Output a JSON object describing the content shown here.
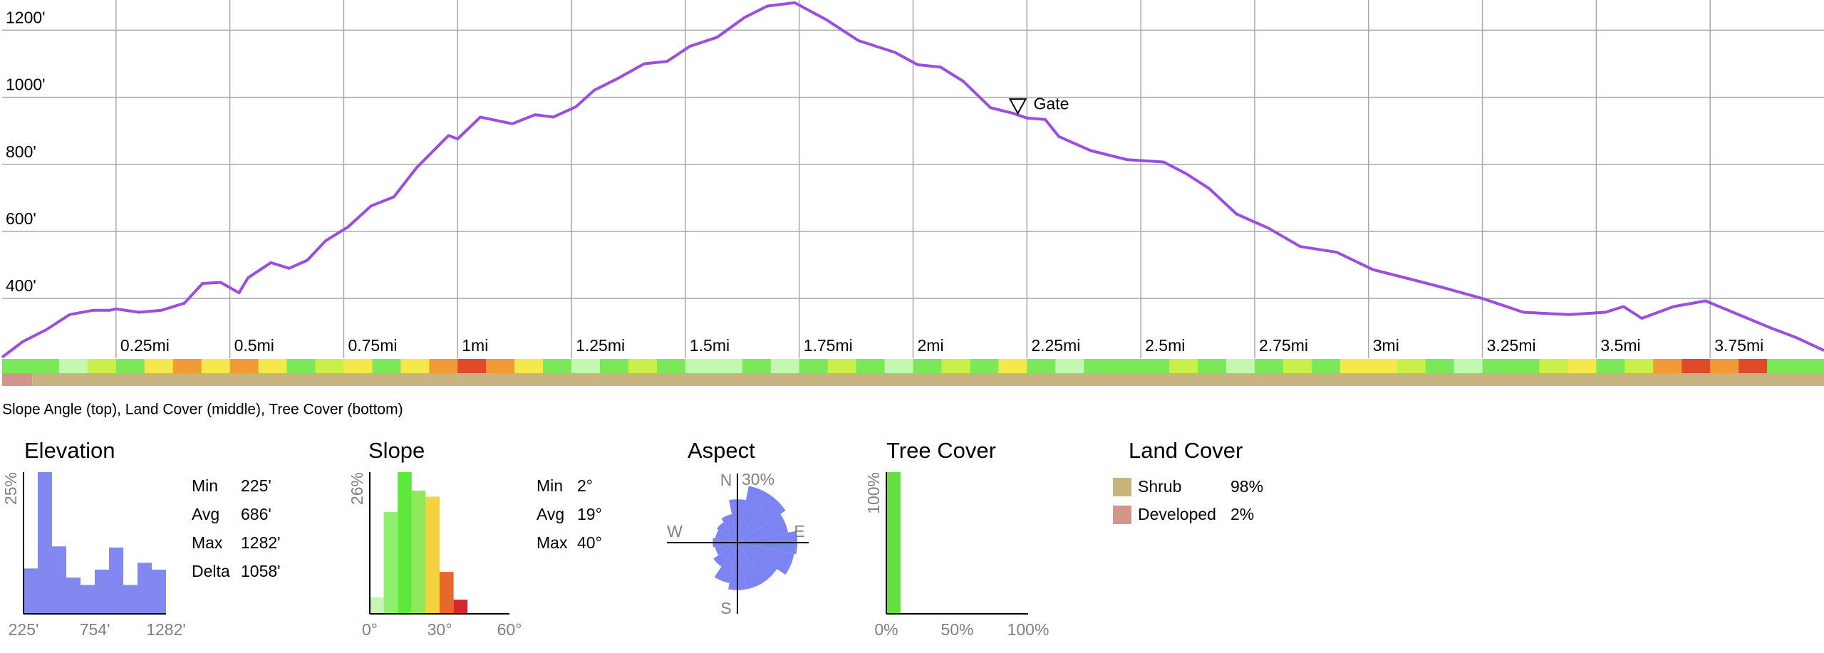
{
  "chart_data": [
    {
      "type": "line",
      "color": "#9b4ee0",
      "x": [
        0,
        0.046,
        0.097,
        0.148,
        0.2,
        0.237,
        0.25,
        0.3,
        0.35,
        0.4,
        0.44,
        0.48,
        0.52,
        0.54,
        0.59,
        0.63,
        0.67,
        0.71,
        0.76,
        0.81,
        0.86,
        0.91,
        0.98,
        1.0,
        1.05,
        1.12,
        1.17,
        1.21,
        1.26,
        1.3,
        1.35,
        1.41,
        1.46,
        1.51,
        1.57,
        1.63,
        1.68,
        1.74,
        1.81,
        1.88,
        1.96,
        2.01,
        2.06,
        2.11,
        2.17,
        2.22,
        2.25,
        2.29,
        2.32,
        2.39,
        2.47,
        2.55,
        2.6,
        2.65,
        2.71,
        2.78,
        2.85,
        2.93,
        3.01,
        3.08,
        3.16,
        3.25,
        3.34,
        3.44,
        3.52,
        3.56,
        3.6,
        3.67,
        3.74,
        3.8,
        3.88,
        3.94,
        4.0
      ],
      "values": [
        225,
        272,
        307,
        352,
        365,
        365,
        369,
        359,
        365,
        386,
        445,
        448,
        417,
        462,
        507,
        490,
        514,
        572,
        614,
        676,
        703,
        790,
        886,
        876,
        941,
        921,
        948,
        941,
        972,
        1021,
        1055,
        1100,
        1107,
        1152,
        1179,
        1238,
        1272,
        1282,
        1231,
        1169,
        1134,
        1097,
        1090,
        1048,
        969,
        952,
        938,
        934,
        883,
        841,
        814,
        807,
        772,
        728,
        652,
        610,
        555,
        538,
        486,
        462,
        434,
        400,
        359,
        352,
        359,
        376,
        341,
        376,
        393,
        359,
        314,
        283,
        245
      ],
      "xlim": [
        0,
        4.0
      ],
      "ylim": [
        222,
        1290
      ],
      "xticks": [
        {
          "value": 0.25,
          "label": "0.25mi"
        },
        {
          "value": 0.5,
          "label": "0.5mi"
        },
        {
          "value": 0.75,
          "label": "0.75mi"
        },
        {
          "value": 1,
          "label": "1mi"
        },
        {
          "value": 1.25,
          "label": "1.25mi"
        },
        {
          "value": 1.5,
          "label": "1.5mi"
        },
        {
          "value": 1.75,
          "label": "1.75mi"
        },
        {
          "value": 2,
          "label": "2mi"
        },
        {
          "value": 2.25,
          "label": "2.25mi"
        },
        {
          "value": 2.5,
          "label": "2.5mi"
        },
        {
          "value": 2.75,
          "label": "2.75mi"
        },
        {
          "value": 3,
          "label": "3mi"
        },
        {
          "value": 3.25,
          "label": "3.25mi"
        },
        {
          "value": 3.5,
          "label": "3.5mi"
        },
        {
          "value": 3.75,
          "label": "3.75mi"
        }
      ],
      "yticks": [
        {
          "value": 400,
          "label": "400'"
        },
        {
          "value": 600,
          "label": "600'"
        },
        {
          "value": 800,
          "label": "800'"
        },
        {
          "value": 1000,
          "label": "1000'"
        },
        {
          "value": 1200,
          "label": "1200'"
        }
      ],
      "grid": true,
      "annotation": {
        "text": "Gate",
        "x": 2.23,
        "y": 969
      },
      "strips": {
        "caption": "Slope Angle (top), Land Cover (middle), Tree Cover (bottom)",
        "slope_colors": [
          "#7be85a",
          "#7be85a",
          "#c4f7b0",
          "#c8f048",
          "#7be85a",
          "#f5e84a",
          "#f09a38",
          "#f5e84a",
          "#f09a38",
          "#f5e84a",
          "#7be85a",
          "#c8f048",
          "#f5e84a",
          "#7be85a",
          "#f5e84a",
          "#f09a38",
          "#e04a28",
          "#f09a38",
          "#f5e84a",
          "#7be85a",
          "#c4f7b0",
          "#7be85a",
          "#c8f048",
          "#7be85a",
          "#c4f7b0",
          "#c4f7b0",
          "#7be85a",
          "#c4f7b0",
          "#7be85a",
          "#c8f048",
          "#7be85a",
          "#c4f7b0",
          "#7be85a",
          "#c8f048",
          "#7be85a",
          "#f5e84a",
          "#7be85a",
          "#c4f7b0",
          "#7be85a",
          "#7be85a",
          "#7be85a",
          "#c8f048",
          "#7be85a",
          "#c4f7b0",
          "#7be85a",
          "#c8f048",
          "#7be85a",
          "#f5e84a",
          "#f5e84a",
          "#c8f048",
          "#7be85a",
          "#c4f7b0",
          "#7be85a",
          "#7be85a",
          "#c8f048",
          "#f5e84a",
          "#7be85a",
          "#c8f048",
          "#f09a38",
          "#e04a28",
          "#f09a38",
          "#e04a28",
          "#7be85a",
          "#7be85a"
        ],
        "land_cover_colors": [
          "#d4968a",
          "#c8b47e"
        ],
        "land_cover_edges": [
          0,
          0.066,
          4.0
        ]
      }
    },
    {
      "type": "histogram",
      "title": "Elevation",
      "color": "#8288f0",
      "bins": [
        225,
        330.7,
        436.4,
        542.1,
        647.8,
        753.5,
        859.2,
        964.9,
        1070.6,
        1176.3,
        1282
      ],
      "values": [
        8.0,
        25,
        11.9,
        6.4,
        5.1,
        7.8,
        11.7,
        5.1,
        9.0,
        7.8
      ],
      "xlim": [
        225,
        1282
      ],
      "xticks": [
        {
          "value": 225,
          "label": "225'"
        },
        {
          "value": 754,
          "label": "754'"
        },
        {
          "value": 1282,
          "label": "1282'"
        }
      ],
      "ylim": [
        0,
        25
      ],
      "yticks": [
        {
          "value": 25,
          "label": "25%"
        }
      ],
      "stats": [
        {
          "label": "Min",
          "value": "225'"
        },
        {
          "label": "Avg",
          "value": "686'"
        },
        {
          "label": "Max",
          "value": "1282'"
        },
        {
          "label": "Delta",
          "value": "1058'"
        }
      ]
    },
    {
      "type": "histogram",
      "title": "Slope",
      "colors": [
        "#c8f5b4",
        "#8ef06c",
        "#5fe83c",
        "#8fe858",
        "#f2d23e",
        "#e8682a",
        "#d0282e"
      ],
      "bins": [
        0,
        6,
        12,
        18,
        24,
        30,
        36,
        42
      ],
      "values": [
        3.0,
        18.7,
        26,
        22.6,
        21.5,
        7.7,
        2.6
      ],
      "xlim": [
        0,
        60
      ],
      "xticks": [
        {
          "value": 0,
          "label": "0°"
        },
        {
          "value": 30,
          "label": "30°"
        },
        {
          "value": 60,
          "label": "60°"
        }
      ],
      "ylim": [
        0,
        26
      ],
      "yticks": [
        {
          "value": 26,
          "label": "26%"
        }
      ],
      "stats": [
        {
          "label": "Min",
          "value": "2°"
        },
        {
          "label": "Avg",
          "value": "19°"
        },
        {
          "label": "Max",
          "value": "40°"
        }
      ]
    },
    {
      "type": "rose",
      "title": "Aspect",
      "color": "#7b84f0",
      "values": [
        21,
        28,
        28,
        25,
        29,
        28,
        23,
        23,
        23,
        20,
        14,
        11,
        12,
        11,
        12,
        14
      ],
      "rlim": [
        0,
        30
      ],
      "rticks": [
        {
          "value": 30,
          "label": "30%"
        }
      ],
      "compass": [
        "N",
        "E",
        "S",
        "W"
      ]
    },
    {
      "type": "histogram",
      "title": "Tree Cover",
      "color": "#66e040",
      "bins": [
        0,
        10,
        20,
        30,
        40,
        50,
        60,
        70,
        80,
        90,
        100
      ],
      "values": [
        100,
        0,
        0,
        0,
        0,
        0,
        0,
        0,
        0,
        0
      ],
      "xlim": [
        0,
        100
      ],
      "xticks": [
        {
          "value": 0,
          "label": "0%"
        },
        {
          "value": 50,
          "label": "50%"
        },
        {
          "value": 100,
          "label": "100%"
        }
      ],
      "ylim": [
        0,
        100
      ],
      "yticks": [
        {
          "value": 100,
          "label": "100%"
        }
      ]
    },
    {
      "type": "legend",
      "title": "Land Cover",
      "categories": [
        "Shrub",
        "Developed"
      ],
      "values": [
        98,
        2
      ],
      "value_labels": [
        "98%",
        "2%"
      ],
      "colors": [
        "#c8b47e",
        "#d4968a"
      ]
    }
  ]
}
